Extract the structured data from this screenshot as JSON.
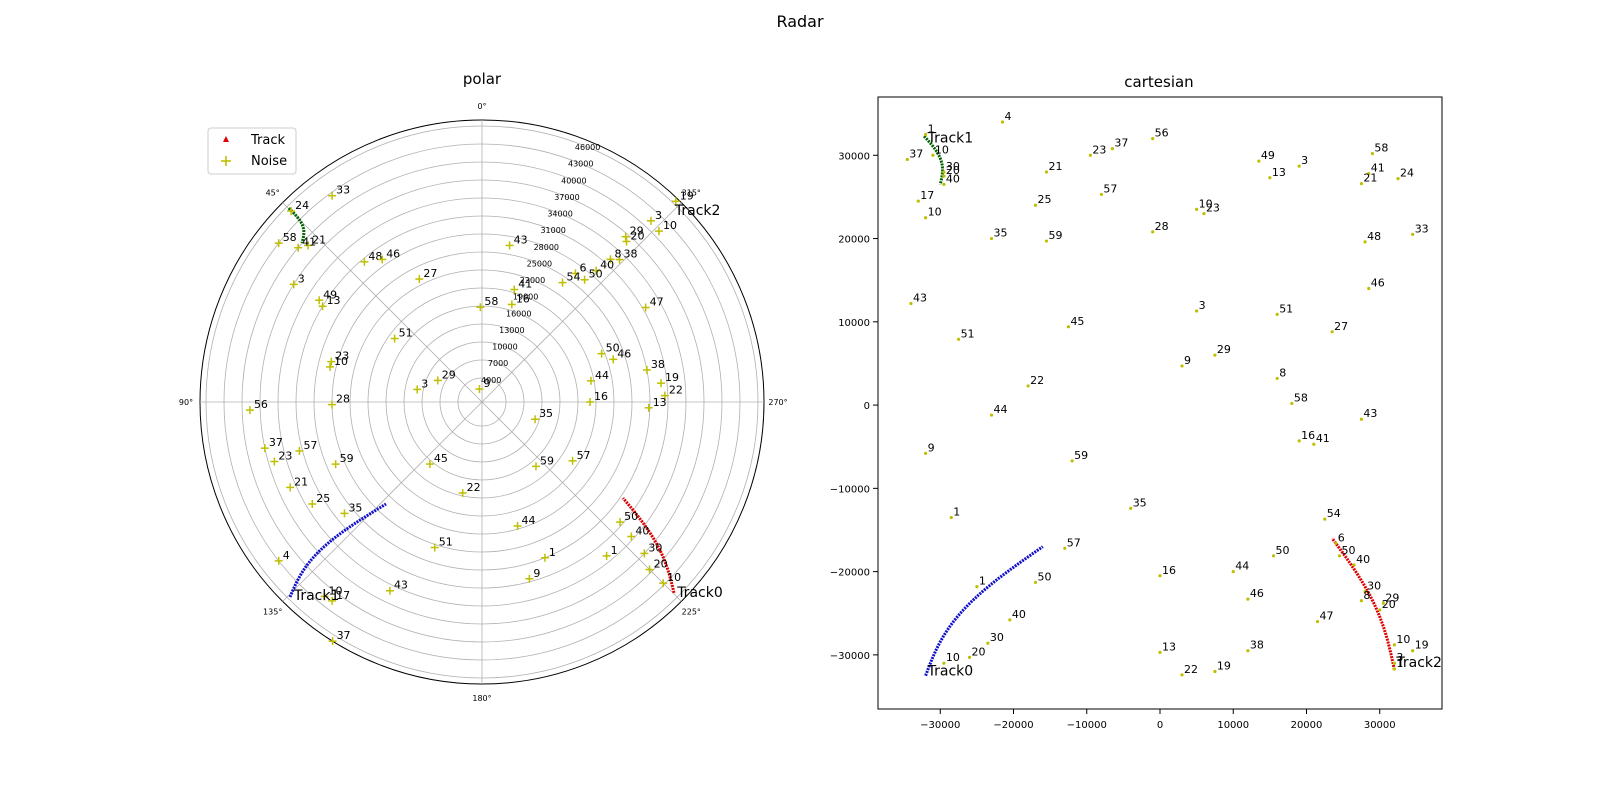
{
  "figure": {
    "title": "Radar"
  },
  "colors": {
    "track0": "#1010cc",
    "track1": "#006400",
    "track2": "#dd0000",
    "noise": "#bfbf00",
    "grid": "#b0b0b0"
  },
  "chart_data": [
    {
      "type": "scatter",
      "projection": "polar",
      "title": "polar",
      "theta_direction": "clockwise",
      "theta_zero": "top",
      "angle_ticks": [
        "0°",
        "45°",
        "90°",
        "135°",
        "180°",
        "225°",
        "270°",
        "315°"
      ],
      "r_ticks": [
        "4000",
        "7000",
        "10000",
        "13000",
        "16000",
        "19000",
        "22000",
        "25000",
        "28000",
        "31000",
        "34000",
        "37000",
        "40000",
        "43000",
        "46000"
      ],
      "rlim": [
        0,
        47000
      ],
      "legend": {
        "placement": "upper-left",
        "entries": [
          "Track",
          "Noise"
        ]
      },
      "track_labels": [
        {
          "text": "Track0",
          "az": 225.3,
          "r": 45300
        },
        {
          "text": "Track1",
          "az": 135.6,
          "r": 45300
        },
        {
          "text": "Track2",
          "az": 315.0,
          "r": 45000
        }
      ],
      "noise_labels": [
        {
          "t": "19",
          "az": 316,
          "r": 46500
        },
        {
          "t": "3",
          "az": 317,
          "r": 41300
        },
        {
          "t": "10",
          "az": 314,
          "r": 41000
        },
        {
          "t": "29",
          "az": 319,
          "r": 36500
        },
        {
          "t": "20",
          "az": 318,
          "r": 36000
        },
        {
          "t": "38",
          "az": 316,
          "r": 33000
        },
        {
          "t": "8",
          "az": 318,
          "r": 32000
        },
        {
          "t": "40",
          "az": 319,
          "r": 29000
        },
        {
          "t": "6",
          "az": 324,
          "r": 26500
        },
        {
          "t": "50",
          "az": 320,
          "r": 26600
        },
        {
          "t": "54",
          "az": 326,
          "r": 24000
        },
        {
          "t": "47",
          "az": 300,
          "r": 31500
        },
        {
          "t": "43",
          "az": 350,
          "r": 26500
        },
        {
          "t": "41",
          "az": 344,
          "r": 19500
        },
        {
          "t": "16",
          "az": 343,
          "r": 17000
        },
        {
          "t": "58",
          "az": 1,
          "r": 15800
        },
        {
          "t": "9",
          "az": 11,
          "r": 2200
        },
        {
          "t": "50",
          "az": 292,
          "r": 21500
        },
        {
          "t": "46",
          "az": 288,
          "r": 23000
        },
        {
          "t": "38",
          "az": 281,
          "r": 28000
        },
        {
          "t": "44",
          "az": 281,
          "r": 18500
        },
        {
          "t": "19",
          "az": 276,
          "r": 30000
        },
        {
          "t": "22",
          "az": 272,
          "r": 30500
        },
        {
          "t": "13",
          "az": 268,
          "r": 27800
        },
        {
          "t": "16",
          "az": 270,
          "r": 18000
        },
        {
          "t": "35",
          "az": 252,
          "r": 9300
        },
        {
          "t": "59",
          "az": 220,
          "r": 14000
        },
        {
          "t": "57",
          "az": 237,
          "r": 18000
        },
        {
          "t": "50",
          "az": 229,
          "r": 30500
        },
        {
          "t": "40",
          "az": 228,
          "r": 33500
        },
        {
          "t": "30",
          "az": 227,
          "r": 37000
        },
        {
          "t": "20",
          "az": 225,
          "r": 39500
        },
        {
          "t": "1",
          "az": 219,
          "r": 33000
        },
        {
          "t": "1",
          "az": 202,
          "r": 28000
        },
        {
          "t": "10",
          "az": 225,
          "r": 42700
        },
        {
          "t": "9",
          "az": 195,
          "r": 30500
        },
        {
          "t": "44",
          "az": 196,
          "r": 21500
        },
        {
          "t": "22",
          "az": 168,
          "r": 15500
        },
        {
          "t": "45",
          "az": 140,
          "r": 13500
        },
        {
          "t": "51",
          "az": 162,
          "r": 25500
        },
        {
          "t": "43",
          "az": 154,
          "r": 35000
        },
        {
          "t": "17",
          "az": 143,
          "r": 41500
        },
        {
          "t": "10",
          "az": 141,
          "r": 41700
        },
        {
          "t": "37",
          "az": 148,
          "r": 47000
        },
        {
          "t": "4",
          "az": 128,
          "r": 43000
        },
        {
          "t": "35",
          "az": 129,
          "r": 29500
        },
        {
          "t": "25",
          "az": 121,
          "r": 33000
        },
        {
          "t": "59",
          "az": 113,
          "r": 26500
        },
        {
          "t": "21",
          "az": 114,
          "r": 35000
        },
        {
          "t": "23",
          "az": 106,
          "r": 36000
        },
        {
          "t": "57",
          "az": 105,
          "r": 31500
        },
        {
          "t": "37",
          "az": 102,
          "r": 37000
        },
        {
          "t": "56",
          "az": 92,
          "r": 38700
        },
        {
          "t": "28",
          "az": 91,
          "r": 25000
        },
        {
          "t": "3",
          "az": 79,
          "r": 11000
        },
        {
          "t": "29",
          "az": 64,
          "r": 8200
        },
        {
          "t": "51",
          "az": 54,
          "r": 18000
        },
        {
          "t": "10",
          "az": 77,
          "r": 26000
        },
        {
          "t": "23",
          "az": 75,
          "r": 26000
        },
        {
          "t": "13",
          "az": 59,
          "r": 31000
        },
        {
          "t": "49",
          "az": 58,
          "r": 32000
        },
        {
          "t": "3",
          "az": 58,
          "r": 37000
        },
        {
          "t": "48",
          "az": 40,
          "r": 30500
        },
        {
          "t": "46",
          "az": 35,
          "r": 29000
        },
        {
          "t": "27",
          "az": 27,
          "r": 23000
        },
        {
          "t": "21",
          "az": 48,
          "r": 39000
        },
        {
          "t": "41",
          "az": 50,
          "r": 40000
        },
        {
          "t": "58",
          "az": 52,
          "r": 43000
        },
        {
          "t": "24",
          "az": 45,
          "r": 45000
        },
        {
          "t": "33",
          "az": 36,
          "r": 42500
        }
      ]
    },
    {
      "type": "scatter",
      "title": "cartesian",
      "xlim": [
        -38500,
        38500
      ],
      "ylim": [
        -36500,
        37000
      ],
      "x_ticks": [
        -30000,
        -20000,
        -10000,
        0,
        10000,
        20000,
        30000
      ],
      "y_ticks": [
        -30000,
        -20000,
        -10000,
        0,
        10000,
        20000,
        30000
      ],
      "x_tick_labels": [
        "−30000",
        "−20000",
        "−10000",
        "0",
        "10000",
        "20000",
        "30000"
      ],
      "y_tick_labels": [
        "−30000",
        "−20000",
        "−10000",
        "0",
        "10000",
        "20000",
        "30000"
      ],
      "track_labels": [
        {
          "text": "Track1",
          "x": -32000,
          "y": 32000
        },
        {
          "text": "Track0",
          "x": -32000,
          "y": -32000
        },
        {
          "text": "Track2",
          "x": 32000,
          "y": -31000
        }
      ],
      "noise_labels": [
        {
          "t": "1",
          "x": -32000,
          "y": 32500
        },
        {
          "t": "10",
          "x": -31000,
          "y": 30000
        },
        {
          "t": "30",
          "x": -29500,
          "y": 28000
        },
        {
          "t": "20",
          "x": -29500,
          "y": 27500
        },
        {
          "t": "40",
          "x": -29500,
          "y": 26500
        },
        {
          "t": "37",
          "x": -34500,
          "y": 29500
        },
        {
          "t": "17",
          "x": -33000,
          "y": 24500
        },
        {
          "t": "10",
          "x": -32000,
          "y": 22500
        },
        {
          "t": "4",
          "x": -21500,
          "y": 34000
        },
        {
          "t": "23",
          "x": -9500,
          "y": 30000
        },
        {
          "t": "37",
          "x": -6500,
          "y": 30800
        },
        {
          "t": "56",
          "x": -1000,
          "y": 32000
        },
        {
          "t": "21",
          "x": -15500,
          "y": 28000
        },
        {
          "t": "57",
          "x": -8000,
          "y": 25300
        },
        {
          "t": "25",
          "x": -17000,
          "y": 24000
        },
        {
          "t": "35",
          "x": -23000,
          "y": 20000
        },
        {
          "t": "59",
          "x": -15500,
          "y": 19700
        },
        {
          "t": "28",
          "x": -1000,
          "y": 20800
        },
        {
          "t": "10",
          "x": 5000,
          "y": 23500
        },
        {
          "t": "23",
          "x": 6000,
          "y": 23000
        },
        {
          "t": "49",
          "x": 13500,
          "y": 29300
        },
        {
          "t": "3",
          "x": 19000,
          "y": 28700
        },
        {
          "t": "13",
          "x": 15000,
          "y": 27300
        },
        {
          "t": "58",
          "x": 29000,
          "y": 30200
        },
        {
          "t": "41",
          "x": 28500,
          "y": 27800
        },
        {
          "t": "21",
          "x": 27500,
          "y": 26600
        },
        {
          "t": "24",
          "x": 32500,
          "y": 27200
        },
        {
          "t": "48",
          "x": 28000,
          "y": 19600
        },
        {
          "t": "33",
          "x": 34500,
          "y": 20500
        },
        {
          "t": "43",
          "x": -34000,
          "y": 12200
        },
        {
          "t": "51",
          "x": -27500,
          "y": 7900
        },
        {
          "t": "45",
          "x": -12500,
          "y": 9400
        },
        {
          "t": "3",
          "x": 5000,
          "y": 11300
        },
        {
          "t": "51",
          "x": 16000,
          "y": 10900
        },
        {
          "t": "27",
          "x": 23500,
          "y": 8800
        },
        {
          "t": "46",
          "x": 28500,
          "y": 14000
        },
        {
          "t": "9",
          "x": 3000,
          "y": 4700
        },
        {
          "t": "29",
          "x": 7500,
          "y": 6000
        },
        {
          "t": "22",
          "x": -18000,
          "y": 2300
        },
        {
          "t": "8",
          "x": 16000,
          "y": 3200
        },
        {
          "t": "58",
          "x": 18000,
          "y": 200
        },
        {
          "t": "44",
          "x": -23000,
          "y": -1200
        },
        {
          "t": "43",
          "x": 27500,
          "y": -1700
        },
        {
          "t": "16",
          "x": 19000,
          "y": -4300
        },
        {
          "t": "41",
          "x": 21000,
          "y": -4700
        },
        {
          "t": "9",
          "x": -32000,
          "y": -5800
        },
        {
          "t": "59",
          "x": -12000,
          "y": -6700
        },
        {
          "t": "35",
          "x": -4000,
          "y": -12400
        },
        {
          "t": "1",
          "x": -28500,
          "y": -13500
        },
        {
          "t": "54",
          "x": 22500,
          "y": -13700
        },
        {
          "t": "57",
          "x": -13000,
          "y": -17200
        },
        {
          "t": "50",
          "x": 15500,
          "y": -18100
        },
        {
          "t": "1",
          "x": -25000,
          "y": -21800
        },
        {
          "t": "50",
          "x": -17000,
          "y": -21300
        },
        {
          "t": "16",
          "x": 0,
          "y": -20500
        },
        {
          "t": "44",
          "x": 10000,
          "y": -20000
        },
        {
          "t": "40",
          "x": -20500,
          "y": -25800
        },
        {
          "t": "30",
          "x": -23500,
          "y": -28600
        },
        {
          "t": "20",
          "x": -26000,
          "y": -30300
        },
        {
          "t": "10",
          "x": -29500,
          "y": -31000
        },
        {
          "t": "46",
          "x": 12000,
          "y": -23300
        },
        {
          "t": "47",
          "x": 21500,
          "y": -26000
        },
        {
          "t": "13",
          "x": 0,
          "y": -29700
        },
        {
          "t": "22",
          "x": 3000,
          "y": -32400
        },
        {
          "t": "19",
          "x": 7500,
          "y": -32000
        },
        {
          "t": "38",
          "x": 12000,
          "y": -29500
        },
        {
          "t": "6",
          "x": 24000,
          "y": -16600
        },
        {
          "t": "50",
          "x": 24500,
          "y": -18100
        },
        {
          "t": "40",
          "x": 26500,
          "y": -19200
        },
        {
          "t": "30",
          "x": 28000,
          "y": -22400
        },
        {
          "t": "8",
          "x": 27500,
          "y": -23500
        },
        {
          "t": "29",
          "x": 30500,
          "y": -23800
        },
        {
          "t": "20",
          "x": 30000,
          "y": -24600
        },
        {
          "t": "10",
          "x": 32000,
          "y": -28800
        },
        {
          "t": "19",
          "x": 34500,
          "y": -29500
        },
        {
          "t": "3",
          "x": 32000,
          "y": -31000
        },
        {
          "t": "1",
          "x": 32000,
          "y": -31700
        }
      ]
    }
  ]
}
